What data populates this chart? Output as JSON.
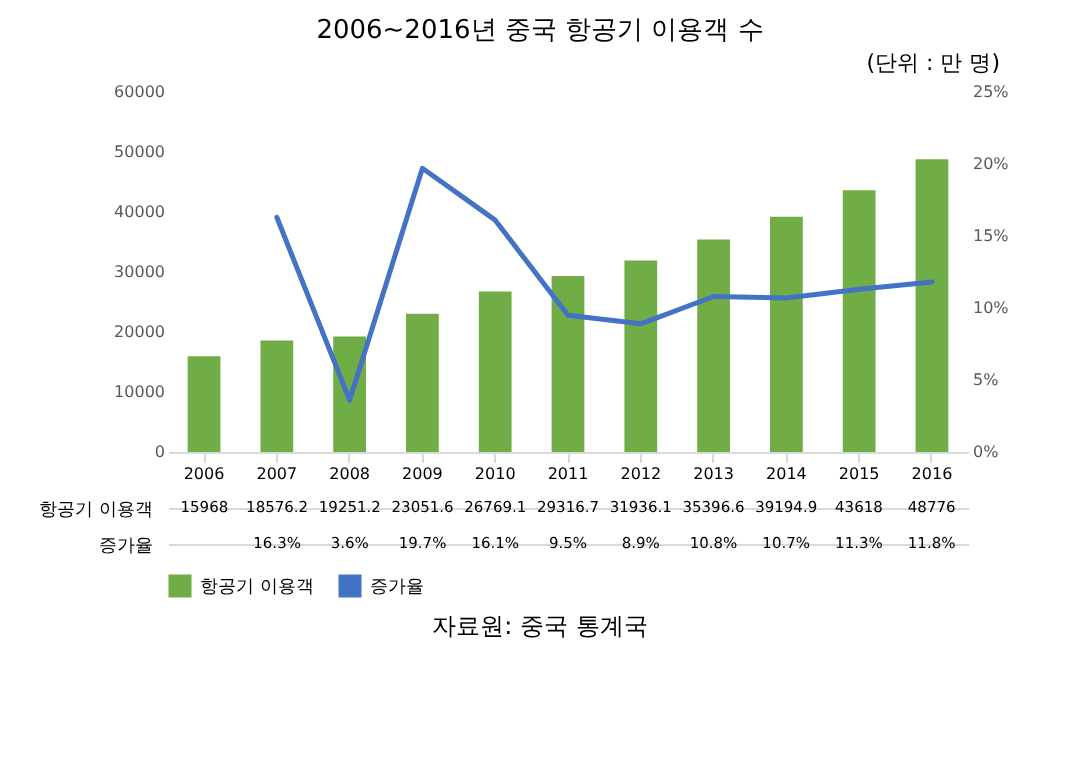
{
  "chart_data": {
    "type": "bar",
    "title": "2006~2016년 중국 항공기 이용객 수",
    "annotations": [
      "(단위 : 만 명)",
      "자료원: 중국 통계국"
    ],
    "categories": [
      "2006",
      "2007",
      "2008",
      "2009",
      "2010",
      "2011",
      "2012",
      "2013",
      "2014",
      "2015",
      "2016"
    ],
    "series": [
      {
        "name": "항공기 이용객",
        "color": "#70ad47",
        "values": [
          15968,
          18576.2,
          19251.2,
          23051.6,
          26769.1,
          29316.7,
          31936.1,
          35396.6,
          39194.9,
          43618,
          48776
        ],
        "value_labels": [
          "15968",
          "18576.2",
          "19251.2",
          "23051.6",
          "26769.1",
          "29316.7",
          "31936.1",
          "35396.6",
          "39194.9",
          "43618",
          "48776"
        ]
      },
      {
        "name": "증가율",
        "type": "line",
        "axis": "y2",
        "color": "#4472c4",
        "values": [
          null,
          16.3,
          3.6,
          19.7,
          16.1,
          9.5,
          8.9,
          10.8,
          10.7,
          11.3,
          11.8
        ],
        "value_labels": [
          null,
          "16.3%",
          "3.6%",
          "19.7%",
          "16.1%",
          "9.5%",
          "8.9%",
          "10.8%",
          "10.7%",
          "11.3%",
          "11.8%"
        ]
      }
    ],
    "ylim": [
      0,
      60000
    ],
    "yticks": [
      0,
      10000,
      20000,
      30000,
      40000,
      50000,
      60000
    ],
    "y2lim": [
      0,
      25
    ],
    "y2ticks": [
      {
        "value": 0,
        "label": "0%"
      },
      {
        "value": 5,
        "label": "5%"
      },
      {
        "value": 10,
        "label": "10%"
      },
      {
        "value": 15,
        "label": "15%"
      },
      {
        "value": 20,
        "label": "20%"
      },
      {
        "value": 25,
        "label": "25%"
      }
    ],
    "legend": "bottom",
    "grid": false
  }
}
